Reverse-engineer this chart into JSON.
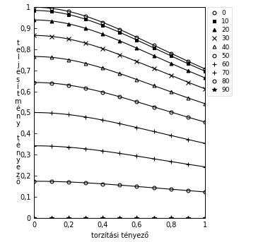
{
  "title": "",
  "xlabel": "torzítási tényező",
  "angles": [
    0,
    10,
    20,
    30,
    40,
    50,
    60,
    70,
    80,
    90
  ],
  "x_ticks": [
    0,
    0.2,
    0.4,
    0.6,
    0.8,
    1
  ],
  "y_ticks": [
    0,
    0.1,
    0.2,
    0.3,
    0.4,
    0.5,
    0.6,
    0.7,
    0.8,
    0.9,
    1
  ],
  "ylabel_line1": "t\ne\nl\nj\ne\ns\ní\nt\nm\né\nn\ny",
  "ylabel_line2": "t\né\nn\ny\ne\nz\nő",
  "line_color": "#000000",
  "background_color": "#ffffff",
  "n_points": 200,
  "n_markers": 11,
  "figsize": [
    3.72,
    3.43
  ],
  "dpi": 100
}
